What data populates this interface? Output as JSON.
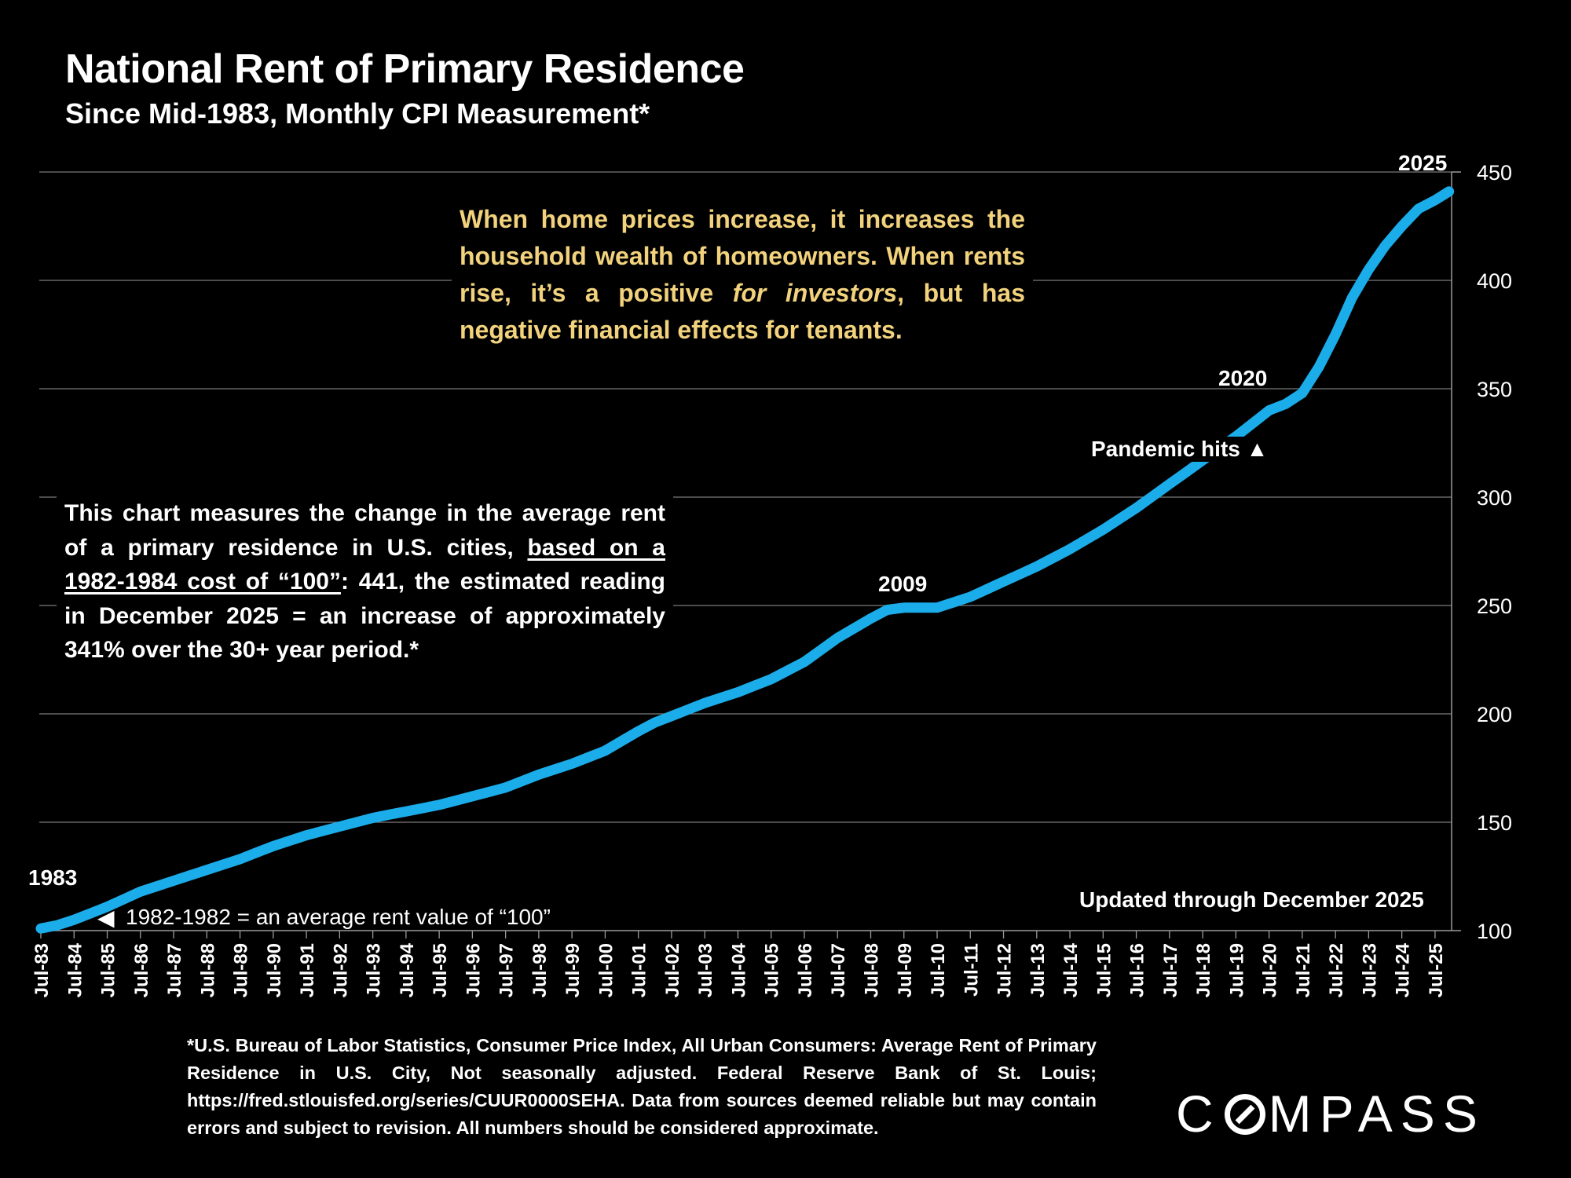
{
  "header": {
    "title": "National Rent of Primary Residence",
    "subtitle": "Since Mid-1983, Monthly CPI Measurement*"
  },
  "annotations": {
    "year_1983": "1983",
    "year_2009": "2009",
    "year_2020": "2020",
    "year_2025": "2025",
    "pandemic": "Pandemic hits ▲",
    "base_note_arrow": "◀",
    "base_note": "1982-1982 = an average rent value of “100”",
    "updated": "Updated through December 2025"
  },
  "gold_box": {
    "part1": "When home prices increase, it increases the household wealth of homeowners. When rents rise, it’s a positive ",
    "emphasis": "for investors",
    "part2": ", but has negative financial effects for tenants."
  },
  "info_box": {
    "part1": "This chart measures the change in the average rent of a primary residence in U.S. cities, ",
    "underlined": "based on a 1982-1984 cost of “100”",
    "part2": ":  441, the estimated reading in December 2025 = an increase of approximately 341% over the 30+ year period.*"
  },
  "footnote": "*U.S. Bureau of Labor Statistics, Consumer Price Index, All Urban Consumers: Average Rent of Primary Residence in U.S. City, Not seasonally adjusted. Federal Reserve Bank of St. Louis; https://fred.stlouisfed.org/series/CUUR0000SEHA. Data from sources deemed reliable but may contain errors and subject to revision. All numbers should be considered approximate.",
  "logo": {
    "pre": "C",
    "post": "MPASS"
  },
  "colors": {
    "line": "#1AADEA",
    "gold": "#F2D27C",
    "grid": "#7a7a7a",
    "background": "#000000"
  },
  "chart_data": {
    "type": "line",
    "title": "National Rent of Primary Residence",
    "subtitle": "Since Mid-1983, Monthly CPI Measurement*",
    "xlabel": "",
    "ylabel": "",
    "ylim": [
      100,
      450
    ],
    "yticks": [
      100,
      150,
      200,
      250,
      300,
      350,
      400,
      450
    ],
    "y_axis_side": "right",
    "grid": true,
    "legend": "none",
    "xtick_labels": [
      "Jul-83",
      "Jul-84",
      "Jul-85",
      "Jul-86",
      "Jul-87",
      "Jul-88",
      "Jul-89",
      "Jul-90",
      "Jul-91",
      "Jul-92",
      "Jul-93",
      "Jul-94",
      "Jul-95",
      "Jul-96",
      "Jul-97",
      "Jul-98",
      "Jul-99",
      "Jul-00",
      "Jul-01",
      "Jul-02",
      "Jul-03",
      "Jul-04",
      "Jul-05",
      "Jul-06",
      "Jul-07",
      "Jul-08",
      "Jul-09",
      "Jul-10",
      "Jul-11",
      "Jul-12",
      "Jul-13",
      "Jul-14",
      "Jul-15",
      "Jul-16",
      "Jul-17",
      "Jul-18",
      "Jul-19",
      "Jul-20",
      "Jul-21",
      "Jul-22",
      "Jul-23",
      "Jul-24",
      "Jul-25"
    ],
    "series": [
      {
        "name": "Rent of Primary Residence CPI",
        "x": [
          "Jul-83",
          "Jan-84",
          "Jul-84",
          "Jan-85",
          "Jul-85",
          "Jan-86",
          "Jul-86",
          "Jan-87",
          "Jul-87",
          "Jan-88",
          "Jul-88",
          "Jan-89",
          "Jul-89",
          "Jan-90",
          "Jul-90",
          "Jan-91",
          "Jul-91",
          "Jan-92",
          "Jul-92",
          "Jan-93",
          "Jul-93",
          "Jan-94",
          "Jul-94",
          "Jan-95",
          "Jul-95",
          "Jan-96",
          "Jul-96",
          "Jan-97",
          "Jul-97",
          "Jan-98",
          "Jul-98",
          "Jan-99",
          "Jul-99",
          "Jan-00",
          "Jul-00",
          "Jan-01",
          "Jul-01",
          "Jan-02",
          "Jul-02",
          "Jan-03",
          "Jul-03",
          "Jan-04",
          "Jul-04",
          "Jan-05",
          "Jul-05",
          "Jan-06",
          "Jul-06",
          "Jan-07",
          "Jul-07",
          "Jan-08",
          "Jul-08",
          "Jan-09",
          "Jul-09",
          "Jan-10",
          "Jul-10",
          "Jan-11",
          "Jul-11",
          "Jan-12",
          "Jul-12",
          "Jan-13",
          "Jul-13",
          "Jan-14",
          "Jul-14",
          "Jan-15",
          "Jul-15",
          "Jan-16",
          "Jul-16",
          "Jan-17",
          "Jul-17",
          "Jan-18",
          "Jul-18",
          "Jan-19",
          "Jul-19",
          "Jan-20",
          "Jul-20",
          "Jan-21",
          "Jul-21",
          "Jan-22",
          "Jul-22",
          "Jan-23",
          "Jul-23",
          "Jan-24",
          "Jul-24",
          "Jan-25",
          "Jul-25",
          "Dec-25"
        ],
        "t": [
          0,
          0.5,
          1,
          1.5,
          2,
          2.5,
          3,
          3.5,
          4,
          4.5,
          5,
          5.5,
          6,
          6.5,
          7,
          7.5,
          8,
          8.5,
          9,
          9.5,
          10,
          10.5,
          11,
          11.5,
          12,
          12.5,
          13,
          13.5,
          14,
          14.5,
          15,
          15.5,
          16,
          16.5,
          17,
          17.5,
          18,
          18.5,
          19,
          19.5,
          20,
          20.5,
          21,
          21.5,
          22,
          22.5,
          23,
          23.5,
          24,
          24.5,
          25,
          25.5,
          26,
          26.5,
          27,
          27.5,
          28,
          28.5,
          29,
          29.5,
          30,
          30.5,
          31,
          31.5,
          32,
          32.5,
          33,
          33.5,
          34,
          34.5,
          35,
          35.5,
          36,
          36.5,
          37,
          37.5,
          38,
          38.5,
          39,
          39.5,
          40,
          40.5,
          41,
          41.5,
          42,
          42.42
        ],
        "values": [
          101,
          102.5,
          105,
          108,
          111,
          114.5,
          118,
          120.5,
          123,
          125.5,
          128,
          130.5,
          133,
          136,
          139,
          141.5,
          144,
          146,
          148,
          150,
          152,
          153.5,
          155,
          156.5,
          158,
          160,
          162,
          164,
          166,
          169,
          172,
          174.5,
          177,
          180,
          183,
          187.5,
          192,
          196,
          199,
          202,
          205,
          207.5,
          210,
          213,
          216,
          220,
          224,
          229.5,
          235,
          239.5,
          244,
          248,
          249,
          249,
          249,
          251.5,
          254,
          257.5,
          261,
          264.5,
          268,
          272,
          276,
          280.5,
          285,
          290,
          295,
          300.5,
          306,
          311.5,
          317,
          322.5,
          328,
          334,
          340,
          343,
          348,
          360,
          375,
          392,
          405,
          416,
          425,
          433,
          437,
          441
        ]
      }
    ]
  }
}
